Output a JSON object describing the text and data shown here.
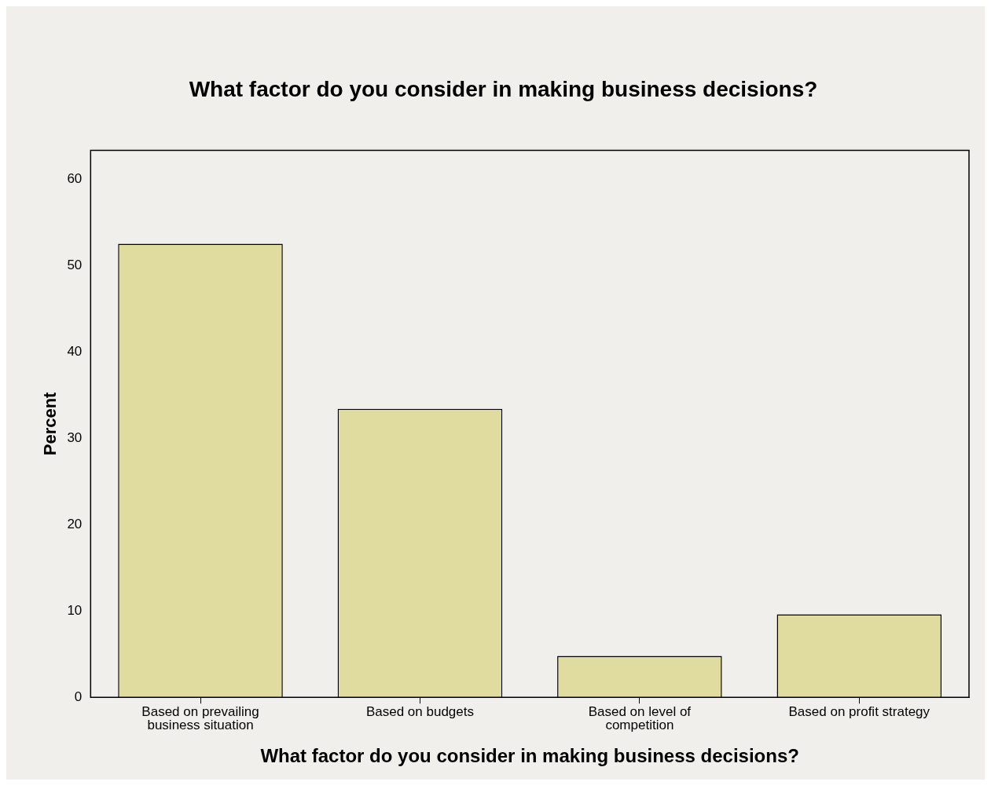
{
  "chart_data": {
    "type": "bar",
    "title": "What factor do you consider in making business decisions?",
    "xlabel": "What factor do you consider in making business decisions?",
    "ylabel": "Percent",
    "categories": [
      "Based on prevailing business situation",
      "Based on budgets",
      "Based on level of competition",
      "Based on profit strategy"
    ],
    "values": [
      52.5,
      33.4,
      4.8,
      9.6
    ],
    "color": "#e0dca0",
    "ylim": [
      0,
      63.3
    ],
    "yticks": [
      0,
      10,
      20,
      30,
      40,
      50,
      60
    ],
    "grid": false,
    "legend": false
  }
}
